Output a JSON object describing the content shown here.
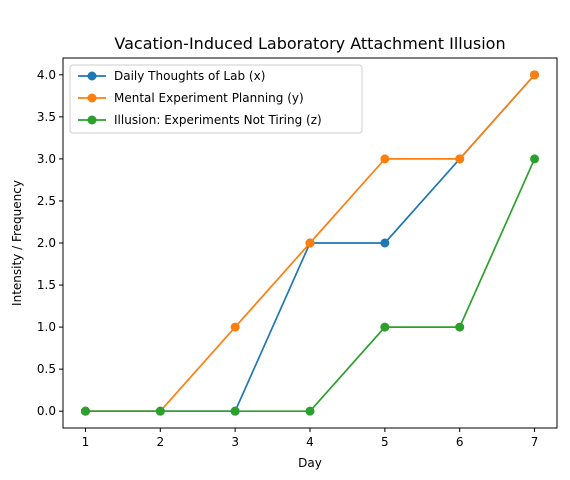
{
  "chart_data": {
    "type": "line",
    "title": "Vacation-Induced Laboratory Attachment Illusion",
    "xlabel": "Day",
    "ylabel": "Intensity / Frequency",
    "x": [
      1,
      2,
      3,
      4,
      5,
      6,
      7
    ],
    "xlim": [
      0.7,
      7.3
    ],
    "ylim": [
      -0.2,
      4.2
    ],
    "xticks": [
      "1",
      "2",
      "3",
      "4",
      "5",
      "6",
      "7"
    ],
    "yticks": [
      "0.0",
      "0.5",
      "1.0",
      "1.5",
      "2.0",
      "2.5",
      "3.0",
      "3.5",
      "4.0"
    ],
    "grid": false,
    "legend_position": "upper-left",
    "series": [
      {
        "name": "Daily Thoughts of Lab (x)",
        "color": "#1f77b4",
        "values": [
          0,
          0,
          0,
          2,
          2,
          3,
          4
        ]
      },
      {
        "name": "Mental Experiment Planning (y)",
        "color": "#ff7f0e",
        "values": [
          0,
          0,
          1,
          2,
          3,
          3,
          4
        ]
      },
      {
        "name": "Illusion: Experiments Not Tiring (z)",
        "color": "#2ca02c",
        "values": [
          0,
          0,
          0,
          0,
          1,
          1,
          3
        ]
      }
    ]
  }
}
